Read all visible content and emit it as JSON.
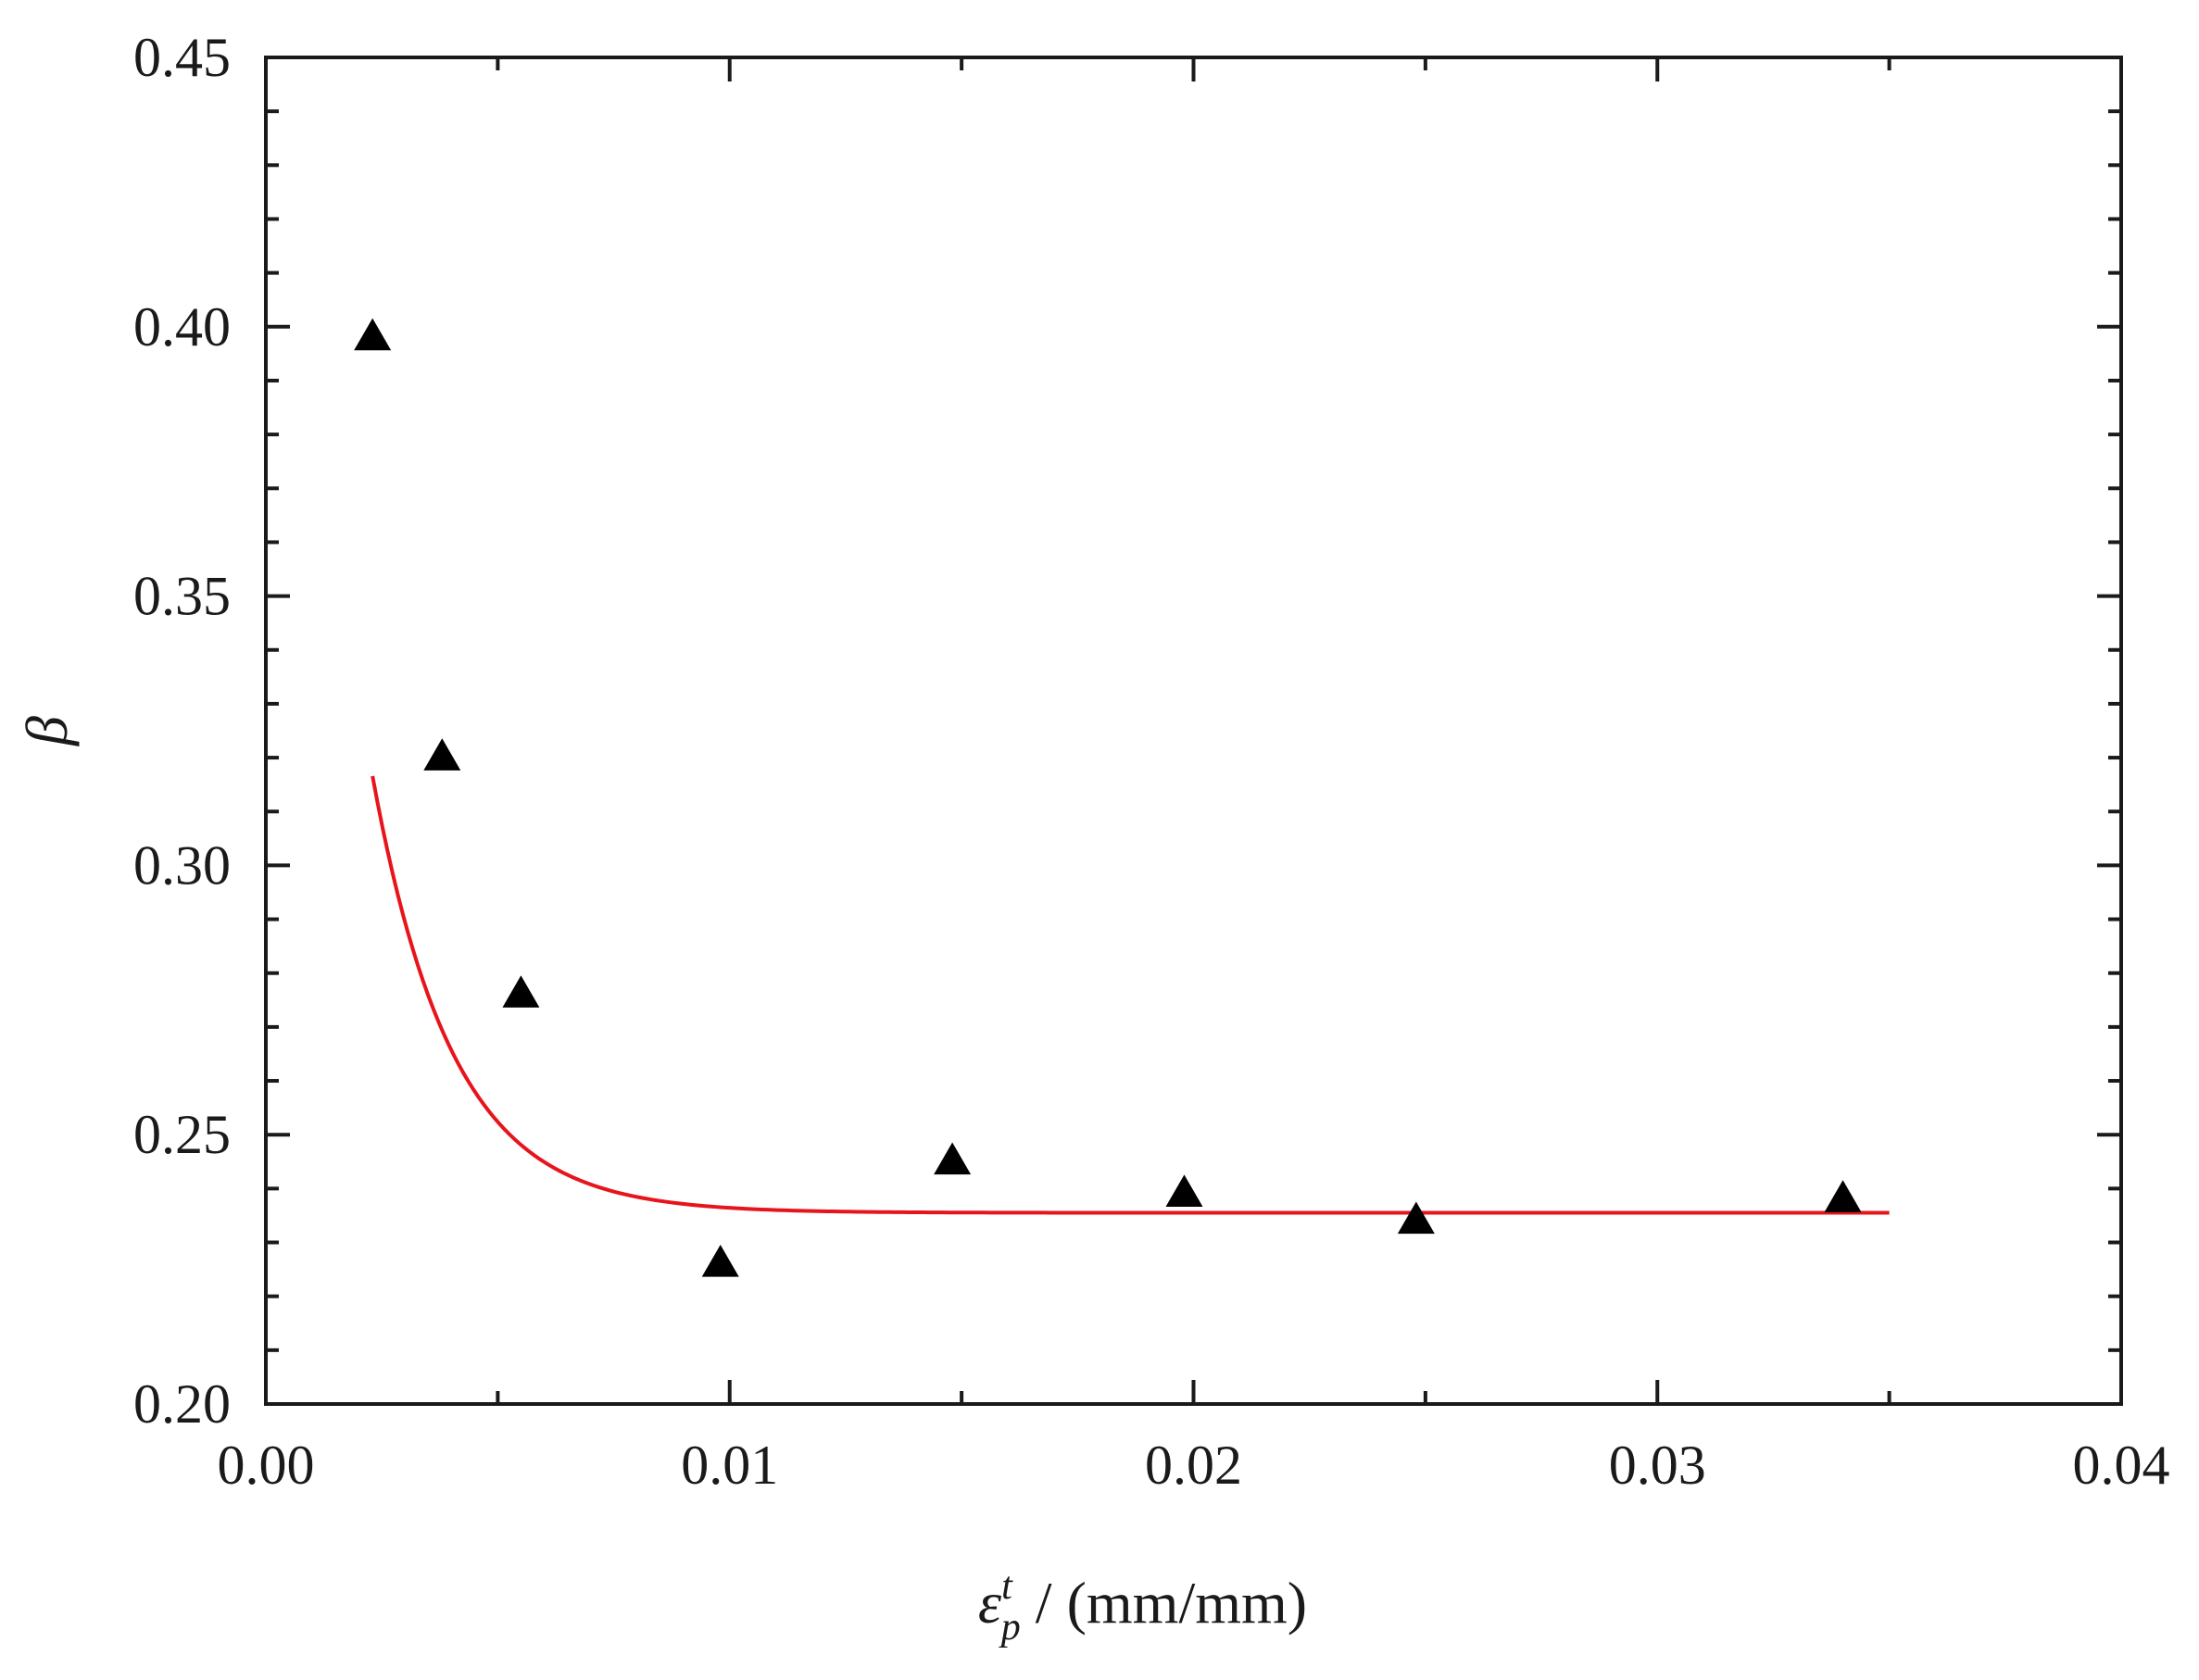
{
  "chart_data": {
    "type": "scatter",
    "title": "",
    "xlabel": {
      "symbol": "ε",
      "superscript": "t",
      "subscript": "p",
      "unit": " / (mm/mm)"
    },
    "ylabel": "β",
    "xlim": [
      0.0,
      0.04
    ],
    "ylim": [
      0.2,
      0.45
    ],
    "x_ticks": [
      "0.00",
      "0.01",
      "0.02",
      "0.03",
      "0.04"
    ],
    "y_ticks": [
      "0.20",
      "0.25",
      "0.30",
      "0.35",
      "0.40",
      "0.45"
    ],
    "grid": false,
    "legend": "none",
    "series": [
      {
        "type": "scatter",
        "marker": "triangle",
        "color": "#000000",
        "points": [
          {
            "x": 0.0023,
            "y": 0.398
          },
          {
            "x": 0.0038,
            "y": 0.32
          },
          {
            "x": 0.0055,
            "y": 0.276
          },
          {
            "x": 0.0098,
            "y": 0.226
          },
          {
            "x": 0.0148,
            "y": 0.245
          },
          {
            "x": 0.0198,
            "y": 0.239
          },
          {
            "x": 0.0248,
            "y": 0.234
          },
          {
            "x": 0.034,
            "y": 0.238
          }
        ]
      },
      {
        "type": "line",
        "color": "#e8141c",
        "fit": {
          "model": "exponential-decay",
          "y0": 0.2355,
          "A": 0.3088,
          "t": 0.00172,
          "x_start": 0.0023,
          "x_end": 0.035
        }
      }
    ]
  }
}
